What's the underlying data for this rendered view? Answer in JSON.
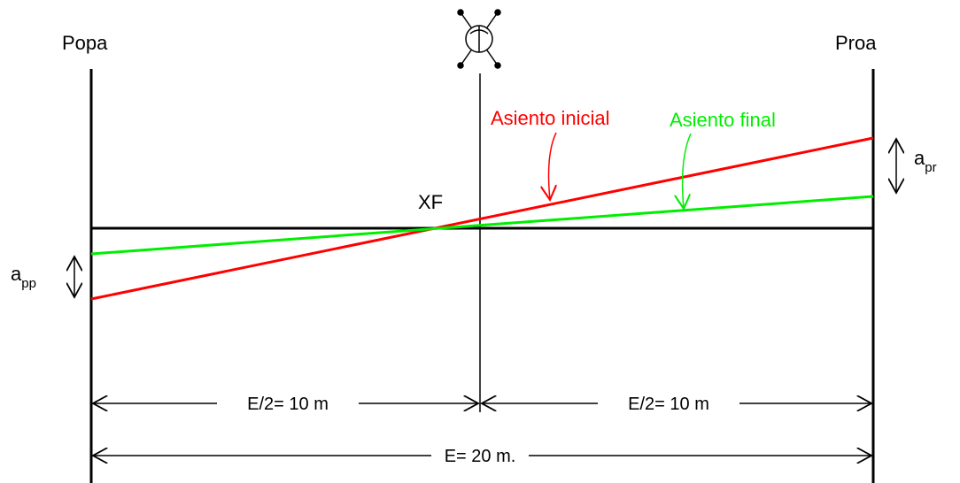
{
  "labels": {
    "popa": "Popa",
    "proa": "Proa",
    "xf": "XF",
    "asiento_inicial": "Asiento inicial",
    "asiento_final": "Asiento final",
    "a_pp_main": "a",
    "a_pp_sub": "pp",
    "a_pr_main": "a",
    "a_pr_sub": "pr",
    "half_left": "E/2= 10 m",
    "half_right": "E/2= 10 m",
    "total": "E= 20 m."
  },
  "colors": {
    "initial_trim": "#ff0000",
    "final_trim": "#00ee00",
    "line": "#000000"
  },
  "icons": {
    "midship": "midship-symbol-icon"
  }
}
